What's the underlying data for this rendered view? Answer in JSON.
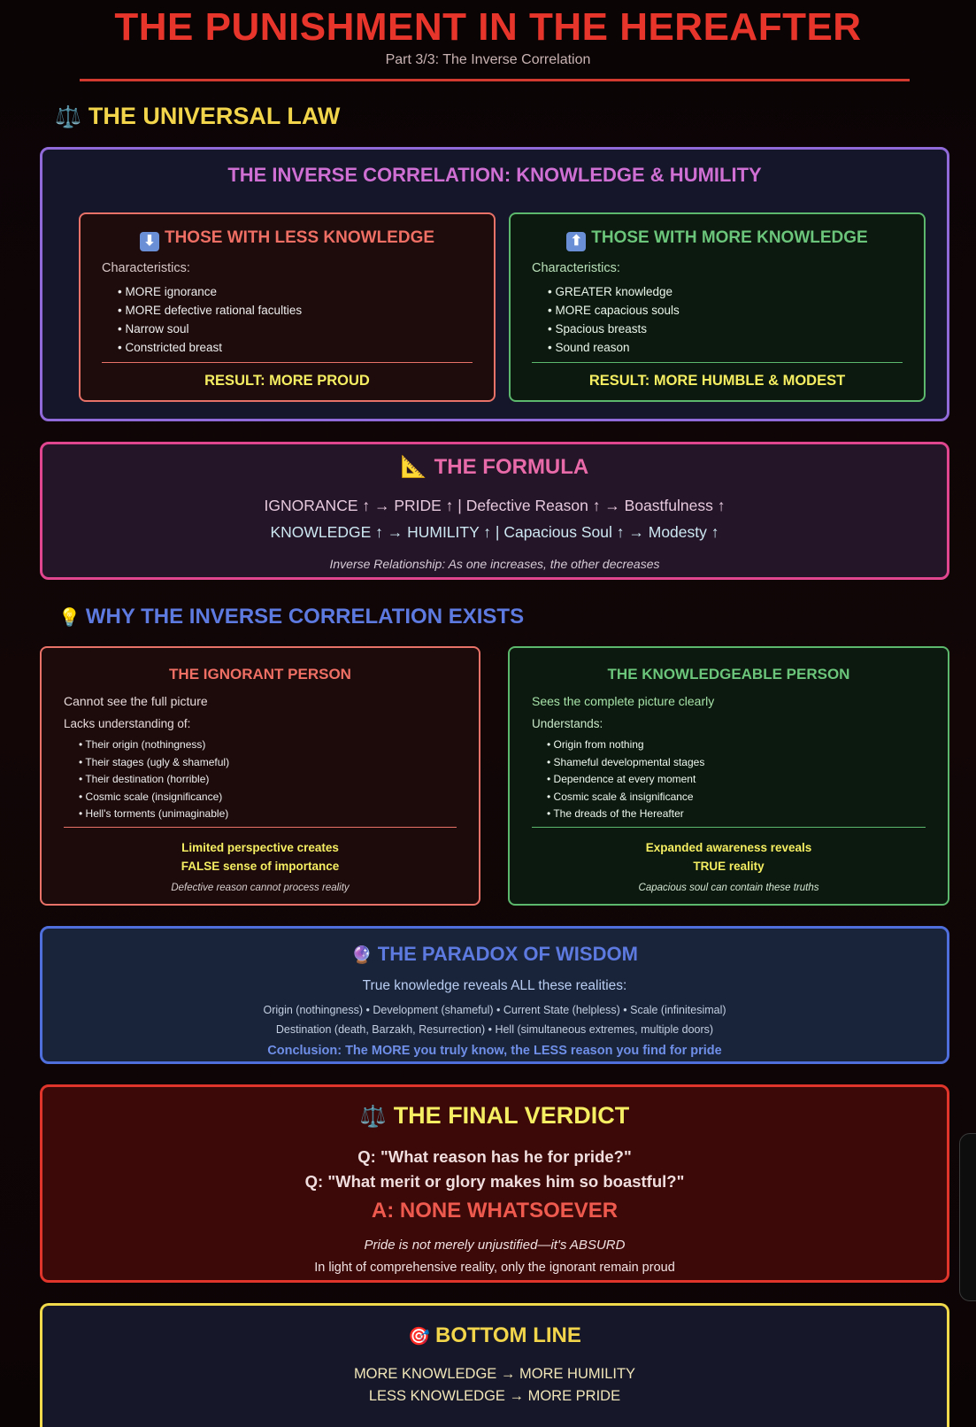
{
  "header": {
    "title": "THE PUNISHMENT IN THE HEREAFTER",
    "subtitle": "Part 3/3: The Inverse Correlation"
  },
  "universal_law": {
    "icon": "scales-icon",
    "heading": "THE UNIVERSAL LAW",
    "box_title": "THE INVERSE CORRELATION: KNOWLEDGE & HUMILITY",
    "less": {
      "icon": "down-arrow-icon",
      "title": "THOSE WITH LESS KNOWLEDGE",
      "label": "Characteristics:",
      "items": [
        "MORE ignorance",
        "MORE defective rational faculties",
        "Narrow soul",
        "Constricted breast"
      ],
      "result": "RESULT: MORE PROUD"
    },
    "more": {
      "icon": "up-arrow-icon",
      "title": "THOSE WITH MORE KNOWLEDGE",
      "label": "Characteristics:",
      "items": [
        "GREATER knowledge",
        "MORE capacious souls",
        "Spacious breasts",
        "Sound reason"
      ],
      "result": "RESULT: MORE HUMBLE & MODEST"
    }
  },
  "formula": {
    "icon": "triangle-ruler-icon",
    "title": "THE FORMULA",
    "line1": "IGNORANCE ↑ → PRIDE ↑ | Defective Reason ↑ → Boastfulness ↑",
    "line2": "KNOWLEDGE ↑ → HUMILITY ↑ | Capacious Soul ↑ → Modesty ↑",
    "note": "Inverse Relationship: As one increases, the other decreases"
  },
  "why": {
    "icon": "lightbulb-icon",
    "heading": "WHY THE INVERSE CORRELATION EXISTS",
    "ignorant": {
      "title": "THE IGNORANT PERSON",
      "line1": "Cannot see the full picture",
      "line2": "Lacks understanding of:",
      "items": [
        "Their origin (nothingness)",
        "Their stages (ugly & shameful)",
        "Their destination (horrible)",
        "Cosmic scale (insignificance)",
        "Hell's torments (unimaginable)"
      ],
      "conclusion1": "Limited perspective creates",
      "conclusion2": "FALSE sense of importance",
      "note": "Defective reason cannot process reality"
    },
    "knowledgeable": {
      "title": "THE KNOWLEDGEABLE PERSON",
      "line1": "Sees the complete picture clearly",
      "line2": "Understands:",
      "items": [
        "Origin from nothing",
        "Shameful developmental stages",
        "Dependence at every moment",
        "Cosmic scale & insignificance",
        "The dreads of the Hereafter"
      ],
      "conclusion1": "Expanded awareness reveals",
      "conclusion2": "TRUE reality",
      "note": "Capacious soul can contain these truths"
    }
  },
  "paradox": {
    "icon": "crystal-ball-icon",
    "title": "THE PARADOX OF WISDOM",
    "intro": "True knowledge reveals ALL these realities:",
    "line1": "Origin (nothingness) • Development (shameful) • Current State (helpless) • Scale (infinitesimal)",
    "line2": "Destination (death, Barzakh, Resurrection) • Hell (simultaneous extremes, multiple doors)",
    "conclusion": "Conclusion: The MORE you truly know, the LESS reason you find for pride"
  },
  "verdict": {
    "icon": "scales-icon",
    "title": "THE FINAL VERDICT",
    "q1": "Q: \"What reason has he for pride?\"",
    "q2": "Q: \"What merit or glory makes him so boastful?\"",
    "answer": "A: NONE WHATSOEVER",
    "note": "Pride is not merely unjustified—it's ABSURD",
    "line": "In light of comprehensive reality, only the ignorant remain proud"
  },
  "bottom": {
    "icon": "target-icon",
    "title": "BOTTOM LINE",
    "line1": "MORE KNOWLEDGE → MORE HUMILITY",
    "line2": "LESS KNOWLEDGE → MORE PRIDE"
  }
}
